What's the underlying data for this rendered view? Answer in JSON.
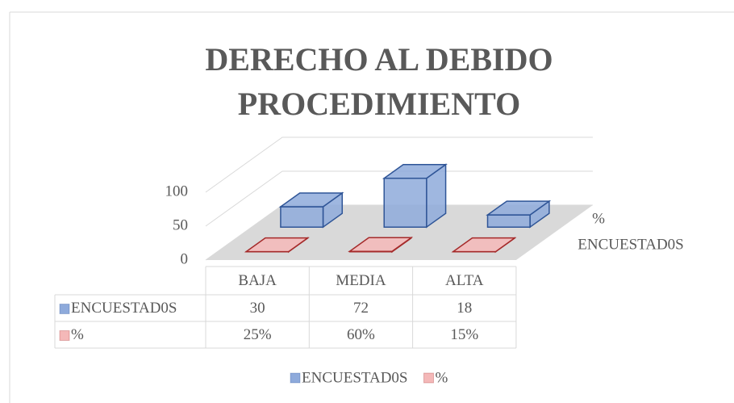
{
  "chart_data": {
    "type": "bar3d",
    "title": [
      "DERECHO AL DEBIDO",
      "PROCEDIMIENTO"
    ],
    "categories": [
      "BAJA",
      "MEDIA",
      "ALTA"
    ],
    "series": [
      {
        "name": "ENCUESTAD0S",
        "color": "#8eaadb",
        "stroke": "#2f5597",
        "values": [
          30,
          72,
          18
        ]
      },
      {
        "name": "%",
        "color": "#f4b8b8",
        "stroke": "#a52a2a",
        "values": [
          0.25,
          0.6,
          0.15
        ],
        "value_labels": [
          "25%",
          "60%",
          "15%"
        ]
      }
    ],
    "ylim": [
      0,
      100
    ],
    "yticks": [
      0,
      50,
      100
    ],
    "grid": true,
    "legend": "bottom",
    "data_table": true
  }
}
